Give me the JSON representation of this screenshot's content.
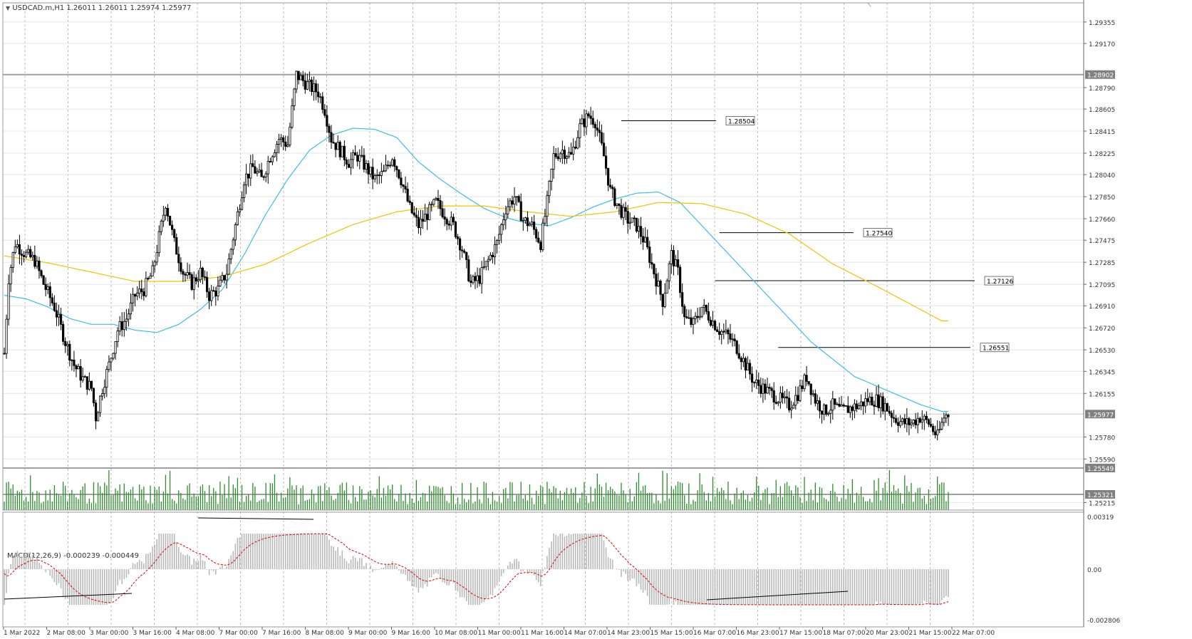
{
  "header": {
    "symbol_label": "USDCAD.m,H1  1.26011 1.26011 1.25974 1.25977"
  },
  "indicator": {
    "macd_label": "MACD(12,26,9) -0.000239 -0.000449"
  },
  "colors": {
    "background": "#ffffff",
    "grid": "#bbbbbb",
    "candle": "#000000",
    "ma_fast": "#3cbfe6",
    "ma_slow": "#f2c200",
    "volume": "#2e8b2e",
    "macd_hist": "#b8b8b8",
    "macd_signal": "#e00000",
    "hline": "#a0a0a0",
    "price_tag_bg": "#808080"
  },
  "price_axis": {
    "labels": [
      "1.29355",
      "1.29170",
      "1.28790",
      "1.28605",
      "1.28415",
      "1.28225",
      "1.28040",
      "1.27850",
      "1.27660",
      "1.27475",
      "1.27285",
      "1.27095",
      "1.26910",
      "1.26720",
      "1.26530",
      "1.26345",
      "1.26155",
      "1.25780",
      "1.25590",
      "1.25215"
    ],
    "tags": [
      "1.28902",
      "1.25977",
      "1.25549",
      "1.25321"
    ]
  },
  "macd_axis": {
    "labels": [
      "0.00319",
      "0.00",
      "-0.002806"
    ]
  },
  "time_axis": {
    "labels": [
      "1 Mar 2022",
      "2 Mar 08:00",
      "3 Mar 00:00",
      "3 Mar 16:00",
      "4 Mar 08:00",
      "7 Mar 00:00",
      "7 Mar 16:00",
      "8 Mar 08:00",
      "9 Mar 00:00",
      "9 Mar 16:00",
      "10 Mar 08:00",
      "11 Mar 00:00",
      "11 Mar 16:00",
      "14 Mar 07:00",
      "14 Mar 23:00",
      "15 Mar 15:00",
      "16 Mar 07:00",
      "16 Mar 23:00",
      "17 Mar 15:00",
      "18 Mar 07:00",
      "20 Mar 23:00",
      "21 Mar 15:00",
      "22 Mar 07:00"
    ]
  },
  "level_tags": [
    "1.28504",
    "1.27540",
    "1.27126",
    "1.26551"
  ],
  "chart_data": {
    "type": "candlestick",
    "timeframe": "H1",
    "symbol": "USDCAD.m",
    "last_ohlc": [
      1.26011,
      1.26011,
      1.25974,
      1.25977
    ],
    "ylim": [
      1.2515,
      1.2952
    ],
    "waypoints": [
      [
        0,
        1.265
      ],
      [
        2,
        1.2715
      ],
      [
        5,
        1.2745
      ],
      [
        10,
        1.2735
      ],
      [
        14,
        1.273
      ],
      [
        18,
        1.271
      ],
      [
        23,
        1.269
      ],
      [
        28,
        1.266
      ],
      [
        32,
        1.264
      ],
      [
        36,
        1.2628
      ],
      [
        40,
        1.262
      ],
      [
        42,
        1.2595
      ],
      [
        45,
        1.262
      ],
      [
        48,
        1.264
      ],
      [
        52,
        1.267
      ],
      [
        56,
        1.268
      ],
      [
        60,
        1.27
      ],
      [
        64,
        1.2705
      ],
      [
        68,
        1.272
      ],
      [
        72,
        1.276
      ],
      [
        74,
        1.278
      ],
      [
        78,
        1.2745
      ],
      [
        82,
        1.272
      ],
      [
        86,
        1.271
      ],
      [
        90,
        1.272
      ],
      [
        94,
        1.27
      ],
      [
        98,
        1.2705
      ],
      [
        102,
        1.272
      ],
      [
        106,
        1.276
      ],
      [
        110,
        1.28
      ],
      [
        114,
        1.281
      ],
      [
        118,
        1.28
      ],
      [
        122,
        1.282
      ],
      [
        126,
        1.2835
      ],
      [
        130,
        1.283
      ],
      [
        134,
        1.289
      ],
      [
        137,
        1.2885
      ],
      [
        140,
        1.288
      ],
      [
        144,
        1.2875
      ],
      [
        147,
        1.286
      ],
      [
        150,
        1.2835
      ],
      [
        154,
        1.2825
      ],
      [
        158,
        1.2815
      ],
      [
        162,
        1.282
      ],
      [
        166,
        1.281
      ],
      [
        170,
        1.28
      ],
      [
        174,
        1.2805
      ],
      [
        178,
        1.282
      ],
      [
        182,
        1.28
      ],
      [
        186,
        1.2775
      ],
      [
        190,
        1.276
      ],
      [
        194,
        1.277
      ],
      [
        198,
        1.278
      ],
      [
        202,
        1.277
      ],
      [
        206,
        1.276
      ],
      [
        210,
        1.274
      ],
      [
        214,
        1.271
      ],
      [
        218,
        1.2715
      ],
      [
        222,
        1.273
      ],
      [
        226,
        1.2745
      ],
      [
        230,
        1.2775
      ],
      [
        234,
        1.2785
      ],
      [
        238,
        1.2765
      ],
      [
        242,
        1.276
      ],
      [
        246,
        1.2745
      ],
      [
        249,
        1.278
      ],
      [
        252,
        1.282
      ],
      [
        256,
        1.2825
      ],
      [
        260,
        1.282
      ],
      [
        264,
        1.2845
      ],
      [
        268,
        1.2855
      ],
      [
        271,
        1.285
      ],
      [
        275,
        1.282
      ],
      [
        278,
        1.279
      ],
      [
        282,
        1.2775
      ],
      [
        286,
        1.2765
      ],
      [
        290,
        1.276
      ],
      [
        294,
        1.2745
      ],
      [
        298,
        1.272
      ],
      [
        302,
        1.2695
      ],
      [
        306,
        1.2735
      ],
      [
        309,
        1.272
      ],
      [
        312,
        1.268
      ],
      [
        316,
        1.2675
      ],
      [
        320,
        1.269
      ],
      [
        324,
        1.268
      ],
      [
        328,
        1.267
      ],
      [
        332,
        1.2665
      ],
      [
        336,
        1.2655
      ],
      [
        340,
        1.264
      ],
      [
        344,
        1.2625
      ],
      [
        348,
        1.262
      ],
      [
        352,
        1.2615
      ],
      [
        356,
        1.261
      ],
      [
        360,
        1.2605
      ],
      [
        364,
        1.2615
      ],
      [
        368,
        1.263
      ],
      [
        372,
        1.261
      ],
      [
        376,
        1.26
      ],
      [
        380,
        1.2605
      ],
      [
        384,
        1.26
      ],
      [
        388,
        1.2603
      ],
      [
        392,
        1.2605
      ],
      [
        396,
        1.261
      ],
      [
        400,
        1.261
      ],
      [
        404,
        1.2605
      ],
      [
        408,
        1.2595
      ],
      [
        412,
        1.259
      ],
      [
        416,
        1.259
      ],
      [
        420,
        1.2595
      ],
      [
        424,
        1.259
      ],
      [
        428,
        1.2578
      ],
      [
        431,
        1.2595
      ],
      [
        433,
        1.2598
      ]
    ],
    "ma_fast_points": [
      [
        0,
        1.27
      ],
      [
        10,
        1.2697
      ],
      [
        20,
        1.269
      ],
      [
        30,
        1.268
      ],
      [
        40,
        1.2675
      ],
      [
        50,
        1.2675
      ],
      [
        60,
        1.267
      ],
      [
        70,
        1.2668
      ],
      [
        80,
        1.2675
      ],
      [
        90,
        1.2688
      ],
      [
        100,
        1.2705
      ],
      [
        110,
        1.2735
      ],
      [
        120,
        1.277
      ],
      [
        130,
        1.28
      ],
      [
        140,
        1.2825
      ],
      [
        150,
        1.2838
      ],
      [
        160,
        1.2844
      ],
      [
        170,
        1.2843
      ],
      [
        180,
        1.2836
      ],
      [
        190,
        1.2815
      ],
      [
        200,
        1.28
      ],
      [
        210,
        1.2787
      ],
      [
        220,
        1.2775
      ],
      [
        230,
        1.2767
      ],
      [
        240,
        1.2762
      ],
      [
        250,
        1.276
      ],
      [
        260,
        1.2767
      ],
      [
        270,
        1.2776
      ],
      [
        280,
        1.2783
      ],
      [
        290,
        1.2788
      ],
      [
        300,
        1.2789
      ],
      [
        310,
        1.278
      ],
      [
        320,
        1.276
      ],
      [
        330,
        1.274
      ],
      [
        340,
        1.272
      ],
      [
        350,
        1.27
      ],
      [
        360,
        1.268
      ],
      [
        370,
        1.266
      ],
      [
        380,
        1.2645
      ],
      [
        390,
        1.263
      ],
      [
        400,
        1.2622
      ],
      [
        410,
        1.2614
      ],
      [
        420,
        1.2606
      ],
      [
        430,
        1.26
      ]
    ],
    "ma_slow_points": [
      [
        0,
        1.2734
      ],
      [
        20,
        1.2728
      ],
      [
        40,
        1.272
      ],
      [
        60,
        1.2712
      ],
      [
        80,
        1.2712
      ],
      [
        100,
        1.2716
      ],
      [
        120,
        1.2727
      ],
      [
        140,
        1.2745
      ],
      [
        160,
        1.2761
      ],
      [
        180,
        1.2772
      ],
      [
        200,
        1.2777
      ],
      [
        220,
        1.2777
      ],
      [
        240,
        1.2772
      ],
      [
        260,
        1.2768
      ],
      [
        280,
        1.2772
      ],
      [
        300,
        1.278
      ],
      [
        320,
        1.2779
      ],
      [
        340,
        1.277
      ],
      [
        360,
        1.2753
      ],
      [
        380,
        1.2727
      ],
      [
        400,
        1.2708
      ],
      [
        420,
        1.2688
      ],
      [
        430,
        1.2678
      ]
    ]
  }
}
